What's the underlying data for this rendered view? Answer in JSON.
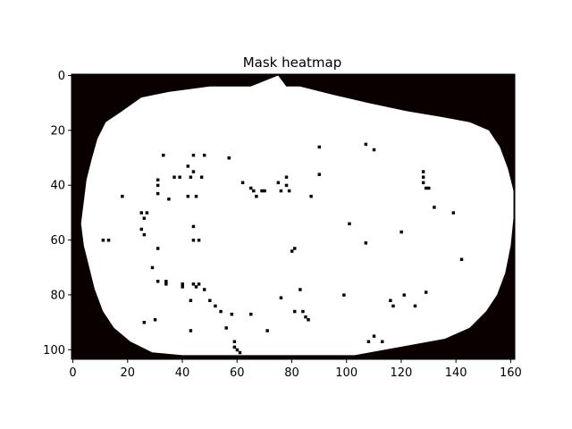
{
  "chart_data": {
    "type": "heatmap",
    "title": "Mask heatmap",
    "xlabel": "",
    "ylabel": "",
    "xlim": [
      -0.5,
      161.5
    ],
    "ylim": [
      103.5,
      -0.5
    ],
    "x_ticks": [
      0,
      20,
      40,
      60,
      80,
      100,
      120,
      140,
      160
    ],
    "y_ticks": [
      0,
      20,
      40,
      60,
      80,
      100
    ],
    "colormap": {
      "0": "#0b0000",
      "1": "#ffffff"
    },
    "grid": false,
    "legend": "none",
    "mask_outline": [
      [
        75,
        0
      ],
      [
        65,
        4
      ],
      [
        50,
        4
      ],
      [
        35,
        6
      ],
      [
        25,
        8
      ],
      [
        18,
        13
      ],
      [
        12,
        17
      ],
      [
        9,
        23
      ],
      [
        7,
        30
      ],
      [
        5,
        38
      ],
      [
        4,
        46
      ],
      [
        3,
        54
      ],
      [
        4,
        62
      ],
      [
        6,
        70
      ],
      [
        8,
        78
      ],
      [
        11,
        86
      ],
      [
        15,
        92
      ],
      [
        21,
        97
      ],
      [
        29,
        101
      ],
      [
        40,
        102
      ],
      [
        58,
        102
      ],
      [
        73,
        102
      ],
      [
        88,
        102
      ],
      [
        103,
        102
      ],
      [
        114,
        100
      ],
      [
        125,
        98
      ],
      [
        136,
        96
      ],
      [
        145,
        92
      ],
      [
        151,
        86
      ],
      [
        155,
        80
      ],
      [
        158,
        72
      ],
      [
        160,
        62
      ],
      [
        161,
        52
      ],
      [
        161,
        42
      ],
      [
        159,
        34
      ],
      [
        156,
        26
      ],
      [
        152,
        20
      ],
      [
        145,
        17
      ],
      [
        134,
        15
      ],
      [
        122,
        13
      ],
      [
        108,
        10
      ],
      [
        95,
        7
      ],
      [
        83,
        4
      ],
      [
        78,
        4
      ]
    ],
    "holes": [
      [
        33,
        29
      ],
      [
        44,
        29
      ],
      [
        48,
        29
      ],
      [
        57,
        30
      ],
      [
        90,
        26
      ],
      [
        107,
        25
      ],
      [
        110,
        27
      ],
      [
        42,
        33
      ],
      [
        44,
        35
      ],
      [
        90,
        36
      ],
      [
        37,
        37
      ],
      [
        39,
        37
      ],
      [
        43,
        37
      ],
      [
        47,
        37
      ],
      [
        78,
        37
      ],
      [
        31,
        38
      ],
      [
        31,
        40
      ],
      [
        62,
        39
      ],
      [
        75,
        39
      ],
      [
        78,
        40
      ],
      [
        65,
        41
      ],
      [
        66,
        42
      ],
      [
        69,
        42
      ],
      [
        70,
        42
      ],
      [
        76,
        42
      ],
      [
        79,
        42
      ],
      [
        31,
        43
      ],
      [
        128,
        35
      ],
      [
        128,
        37
      ],
      [
        128,
        39
      ],
      [
        129,
        41
      ],
      [
        130,
        41
      ],
      [
        18,
        44
      ],
      [
        35,
        45
      ],
      [
        42,
        44
      ],
      [
        45,
        44
      ],
      [
        67,
        44
      ],
      [
        87,
        44
      ],
      [
        132,
        48
      ],
      [
        25,
        50
      ],
      [
        27,
        50
      ],
      [
        139,
        50
      ],
      [
        26,
        52
      ],
      [
        101,
        54
      ],
      [
        44,
        55
      ],
      [
        25,
        56
      ],
      [
        26,
        58
      ],
      [
        120,
        57
      ],
      [
        11,
        60
      ],
      [
        13,
        60
      ],
      [
        44,
        60
      ],
      [
        46,
        60
      ],
      [
        107,
        61
      ],
      [
        31,
        63
      ],
      [
        81,
        63
      ],
      [
        80,
        64
      ],
      [
        142,
        67
      ],
      [
        29,
        70
      ],
      [
        31,
        75
      ],
      [
        34,
        75
      ],
      [
        34,
        76
      ],
      [
        40,
        76
      ],
      [
        44,
        76
      ],
      [
        46,
        76
      ],
      [
        40,
        77
      ],
      [
        45,
        77
      ],
      [
        48,
        78
      ],
      [
        83,
        78
      ],
      [
        99,
        80
      ],
      [
        121,
        80
      ],
      [
        129,
        79
      ],
      [
        43,
        82
      ],
      [
        50,
        82
      ],
      [
        76,
        81
      ],
      [
        116,
        82
      ],
      [
        117,
        84
      ],
      [
        125,
        84
      ],
      [
        52,
        84
      ],
      [
        54,
        86
      ],
      [
        58,
        87
      ],
      [
        65,
        87
      ],
      [
        81,
        86
      ],
      [
        84,
        86
      ],
      [
        85,
        88
      ],
      [
        86,
        89
      ],
      [
        30,
        89
      ],
      [
        26,
        90
      ],
      [
        56,
        92
      ],
      [
        43,
        93
      ],
      [
        71,
        93
      ],
      [
        110,
        95
      ],
      [
        108,
        97
      ],
      [
        113,
        97
      ],
      [
        59,
        97
      ],
      [
        59,
        99
      ],
      [
        60,
        100
      ],
      [
        61,
        101
      ]
    ]
  }
}
